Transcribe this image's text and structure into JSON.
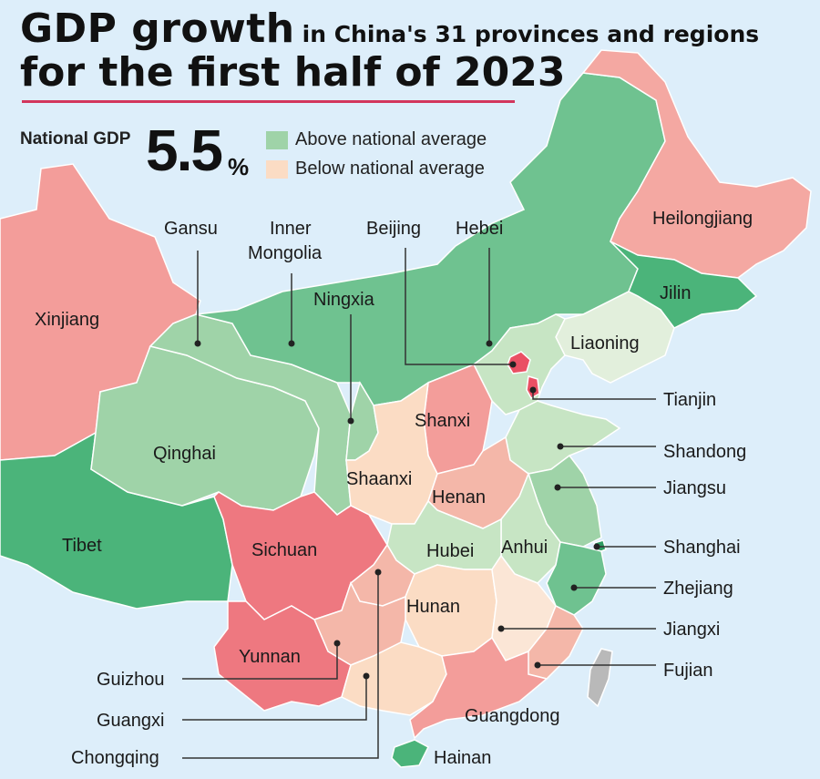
{
  "title": {
    "line1_big": "GDP growth",
    "line1_small": "in China's 31 provinces and regions",
    "line2": "for the first half of 2023"
  },
  "national": {
    "label": "National GDP",
    "value": "5.5",
    "unit": "%"
  },
  "legend": {
    "above": "Above national average",
    "below": "Below national average"
  },
  "colors": {
    "sea": "#ddeefa",
    "above_dark": "#4bb47a",
    "above_mid": "#6fc290",
    "above_light": "#9fd3a8",
    "above_pale": "#c7e5c4",
    "above_faint": "#e2efdc",
    "below_faint": "#fbdcc4",
    "below_light": "#f4b7a9",
    "below_mid": "#f39d9a",
    "below_dark": "#ee7880",
    "below_red": "#ea5064",
    "taiwan": "#b9b9b9",
    "rule": "#d2365c"
  },
  "regions": {
    "xinjiang": "Xinjiang",
    "tibet": "Tibet",
    "qinghai": "Qinghai",
    "gansu": "Gansu",
    "inner_mongolia_1": "Inner",
    "inner_mongolia_2": "Mongolia",
    "ningxia": "Ningxia",
    "beijing": "Beijing",
    "hebei": "Hebei",
    "heilongjiang": "Heilongjiang",
    "jilin": "Jilin",
    "liaoning": "Liaoning",
    "tianjin": "Tianjin",
    "shanxi": "Shanxi",
    "shandong": "Shandong",
    "shaanxi": "Shaanxi",
    "henan": "Henan",
    "jiangsu": "Jiangsu",
    "sichuan": "Sichuan",
    "hubei": "Hubei",
    "anhui": "Anhui",
    "shanghai": "Shanghai",
    "zhejiang": "Zhejiang",
    "hunan": "Hunan",
    "jiangxi": "Jiangxi",
    "yunnan": "Yunnan",
    "guizhou": "Guizhou",
    "fujian": "Fujian",
    "guangxi": "Guangxi",
    "guangdong": "Guangdong",
    "chongqing": "Chongqing",
    "hainan": "Hainan"
  }
}
